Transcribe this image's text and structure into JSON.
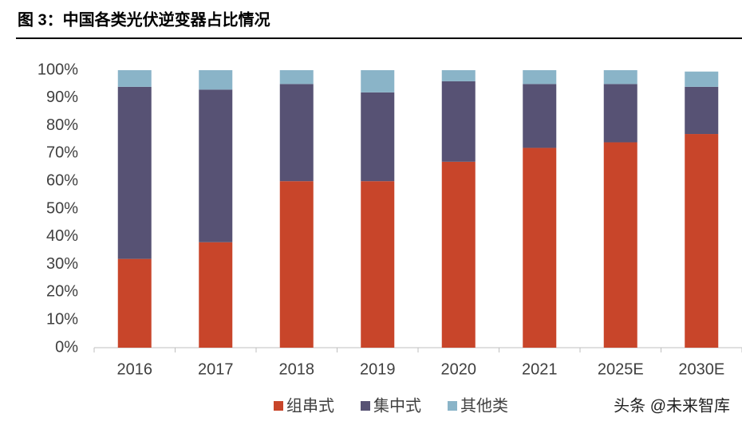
{
  "chart_data": {
    "type": "stacked_bar",
    "title": "图 3：中国各类光伏逆变器占比情况",
    "categories": [
      "2016",
      "2017",
      "2018",
      "2019",
      "2020",
      "2021",
      "2025E",
      "2030E"
    ],
    "series": [
      {
        "name": "组串式",
        "color": "#c8452a",
        "values": [
          32,
          38,
          60,
          60,
          67,
          72,
          74,
          77
        ]
      },
      {
        "name": "集中式",
        "color": "#575274",
        "values": [
          62,
          55,
          35,
          32,
          29,
          23,
          21,
          17
        ]
      },
      {
        "name": "其他类",
        "color": "#8ab4c8",
        "values": [
          6,
          7,
          5,
          8,
          4,
          5,
          5,
          5.5
        ]
      }
    ],
    "ylim": [
      0,
      100
    ],
    "yticks": [
      {
        "value": 0,
        "label": "0%"
      },
      {
        "value": 10,
        "label": "10%"
      },
      {
        "value": 20,
        "label": "20%"
      },
      {
        "value": 30,
        "label": "30%"
      },
      {
        "value": 40,
        "label": "40%"
      },
      {
        "value": 50,
        "label": "50%"
      },
      {
        "value": 60,
        "label": "60%"
      },
      {
        "value": 70,
        "label": "70%"
      },
      {
        "value": 80,
        "label": "80%"
      },
      {
        "value": 90,
        "label": "90%"
      },
      {
        "value": 100,
        "label": "100%"
      }
    ],
    "watermark": "头条 @未来智库"
  }
}
